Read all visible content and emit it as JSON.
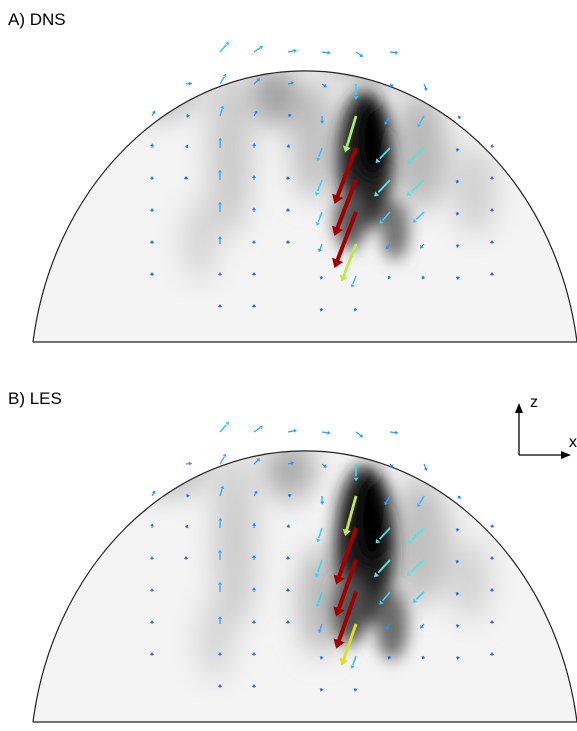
{
  "panels": [
    {
      "id": "dns",
      "label": "A) DNS"
    },
    {
      "id": "les",
      "label": "B) LES"
    }
  ],
  "axes_indicator": {
    "vertical_label": "z",
    "horizontal_label": "x"
  },
  "colormap": {
    "low": "#1e5eff",
    "mid1": "#3ad0ff",
    "mid2": "#7dffa0",
    "mid3": "#ffd200",
    "high": "#a00000"
  },
  "background_shading": "grayscale"
}
